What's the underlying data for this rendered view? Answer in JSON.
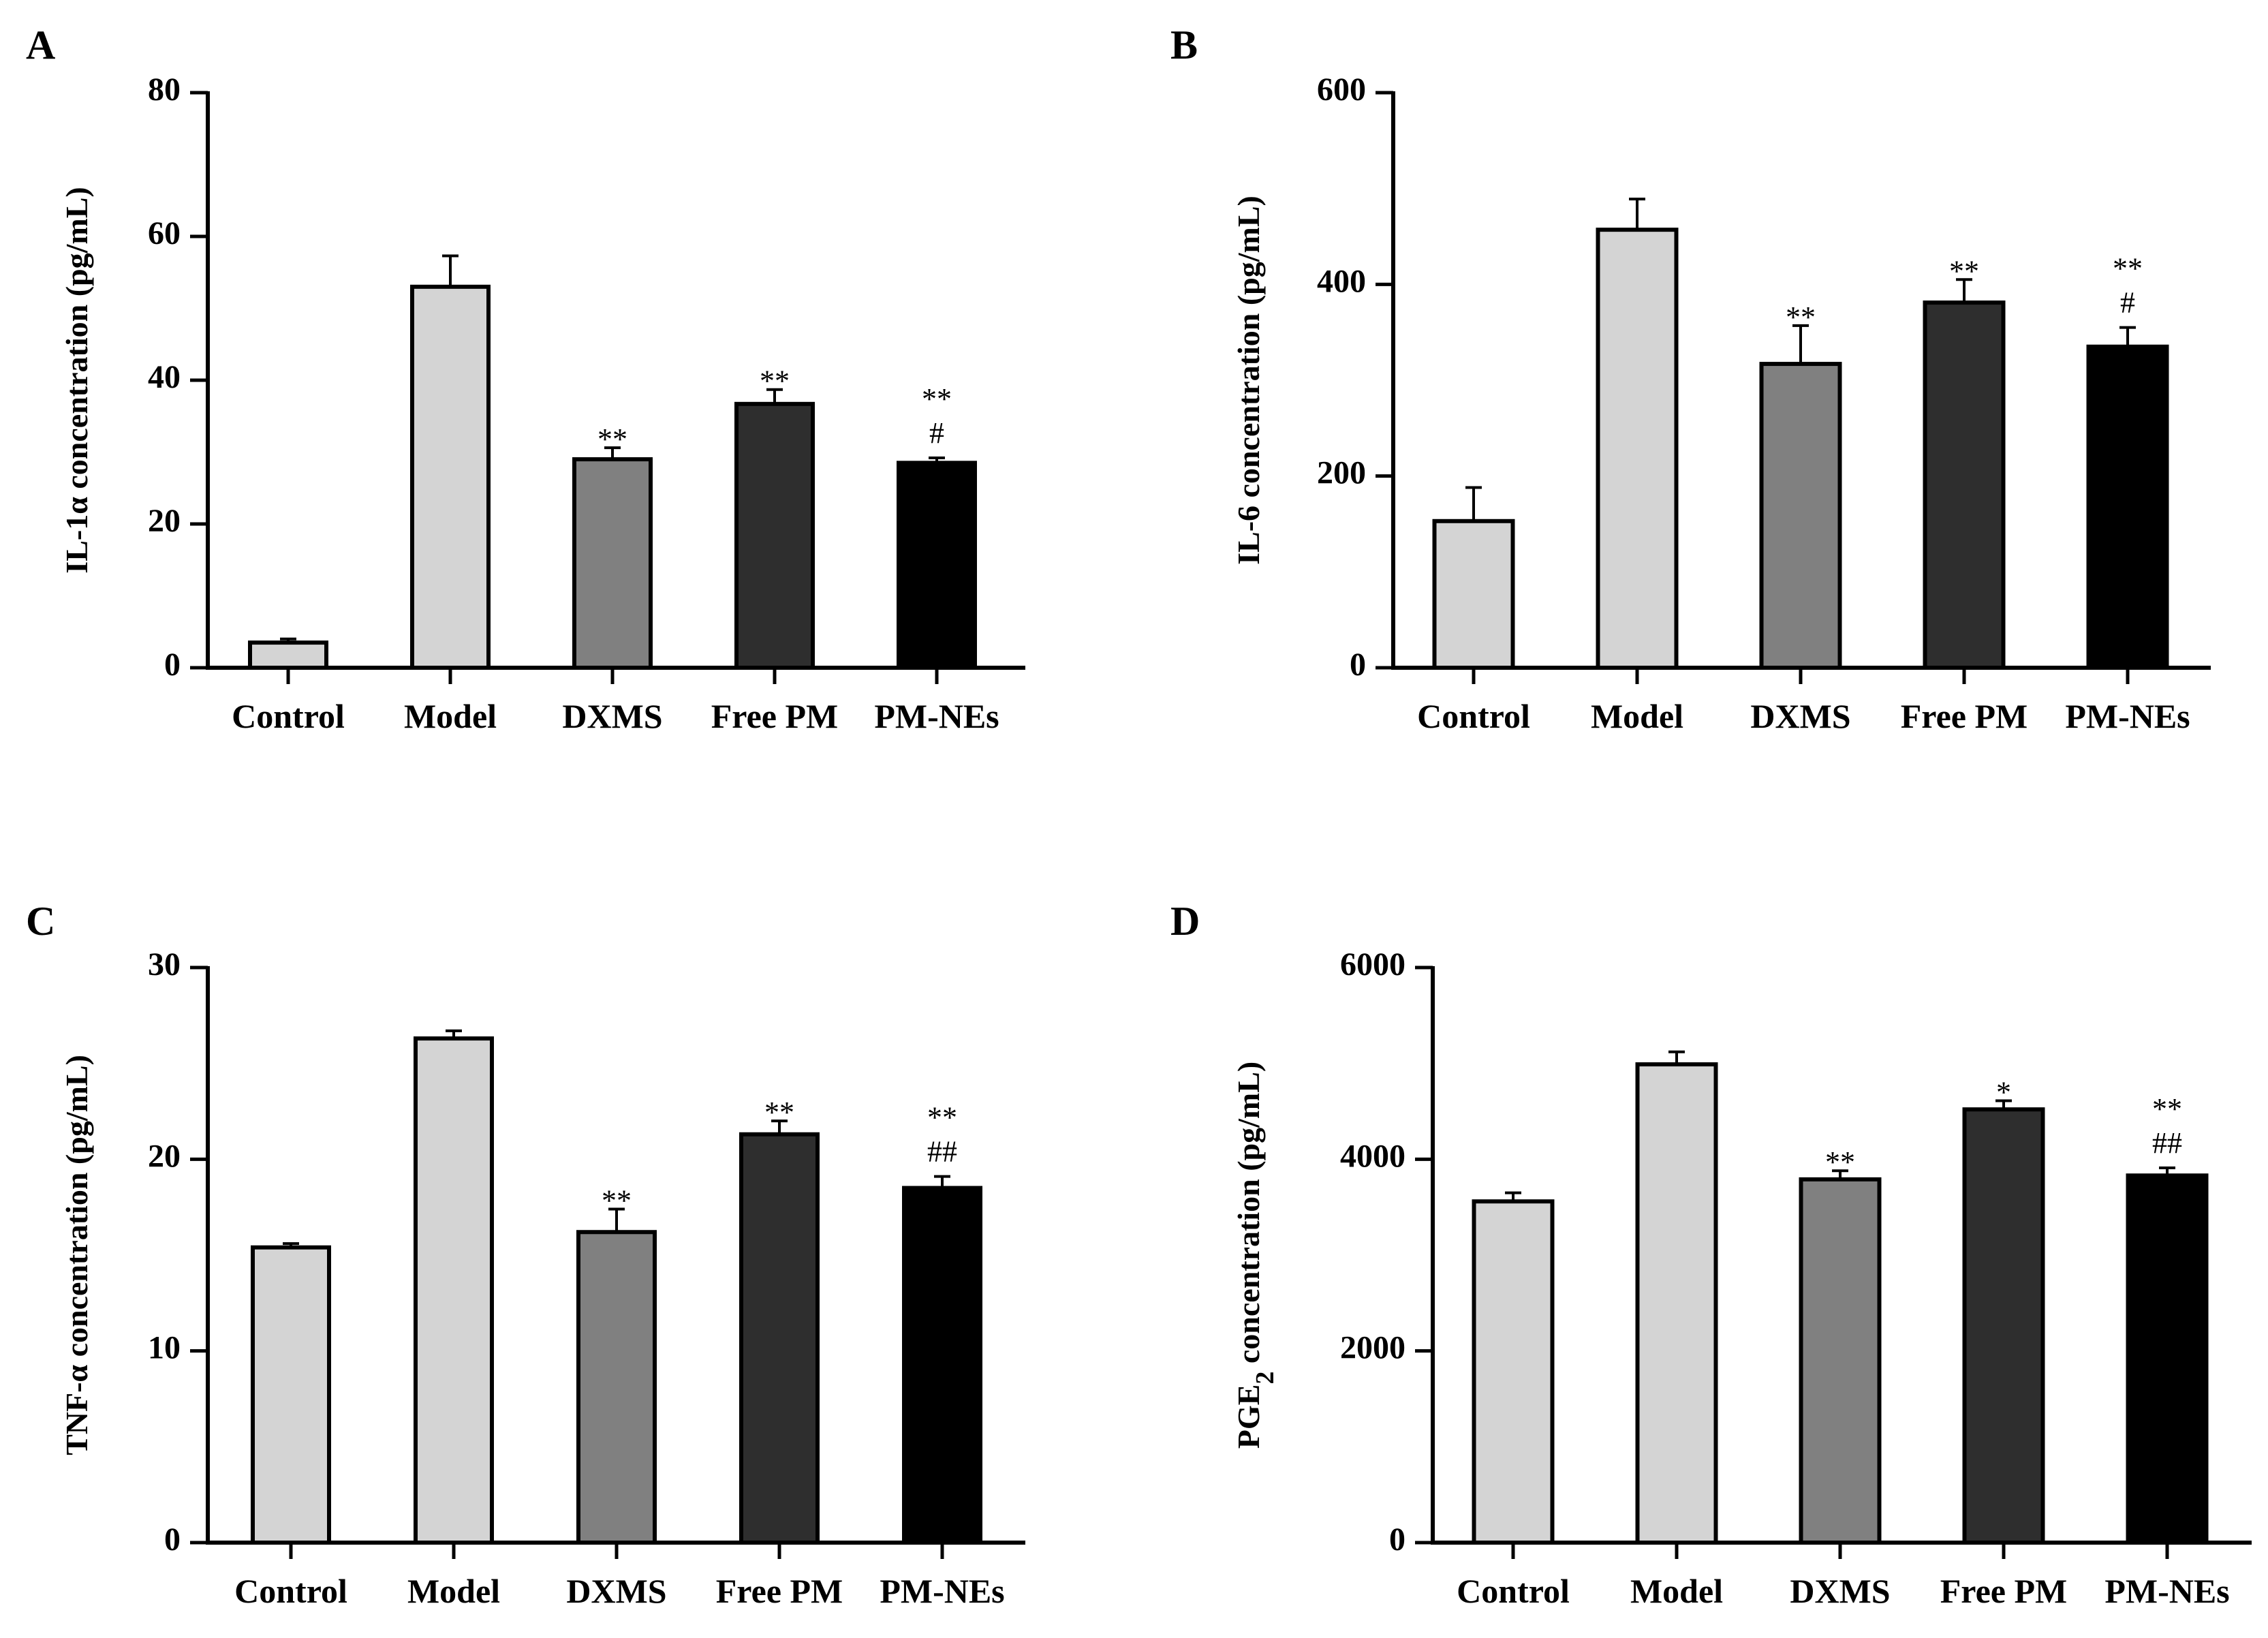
{
  "chart_data": [
    {
      "type": "bar",
      "panel_label": "A",
      "categories": [
        "Control",
        "Model",
        "DXMS",
        "Free PM",
        "PM-NEs"
      ],
      "values": [
        3.5,
        53,
        29,
        36.7,
        28.5
      ],
      "errors": [
        0.5,
        4.3,
        1.6,
        2.0,
        0.7
      ],
      "significance": [
        "",
        "",
        "**",
        "**",
        "**"
      ],
      "significance2": [
        "",
        "",
        "",
        "",
        "#"
      ],
      "ylabel": "IL-1α concentration (pg/mL)",
      "ylim": [
        0,
        80
      ],
      "yticks": [
        0,
        20,
        40,
        60,
        80
      ],
      "colors": [
        "#d4d4d4",
        "#d4d4d4",
        "#808080",
        "#2e2e2e",
        "#000000"
      ]
    },
    {
      "type": "bar",
      "panel_label": "B",
      "categories": [
        "Control",
        "Model",
        "DXMS",
        "Free PM",
        "PM-NEs"
      ],
      "values": [
        153,
        457,
        317,
        381,
        335
      ],
      "errors": [
        35,
        32,
        40,
        24,
        20
      ],
      "significance": [
        "",
        "",
        "**",
        "**",
        "**"
      ],
      "significance2": [
        "",
        "",
        "",
        "",
        "#"
      ],
      "ylabel": "IL-6 concentration (pg/mL)",
      "ylim": [
        0,
        600
      ],
      "yticks": [
        0,
        200,
        400,
        600
      ],
      "colors": [
        "#d4d4d4",
        "#d4d4d4",
        "#808080",
        "#2e2e2e",
        "#000000"
      ]
    },
    {
      "type": "bar",
      "panel_label": "C",
      "categories": [
        "Control",
        "Model",
        "DXMS",
        "Free PM",
        "PM-NEs"
      ],
      "values": [
        15.4,
        26.3,
        16.2,
        21.3,
        18.5
      ],
      "errors": [
        0.2,
        0.4,
        1.2,
        0.7,
        0.6
      ],
      "significance": [
        "",
        "",
        "**",
        "**",
        "**"
      ],
      "significance2": [
        "",
        "",
        "",
        "",
        "##"
      ],
      "ylabel": "TNF-α concentration (pg/mL)",
      "ylim": [
        0,
        30
      ],
      "yticks": [
        0,
        10,
        20,
        30
      ],
      "colors": [
        "#d4d4d4",
        "#d4d4d4",
        "#808080",
        "#2e2e2e",
        "#000000"
      ]
    },
    {
      "type": "bar",
      "panel_label": "D",
      "categories": [
        "Control",
        "Model",
        "DXMS",
        "Free PM",
        "PM-NEs"
      ],
      "values": [
        3560,
        4990,
        3790,
        4520,
        3830
      ],
      "errors": [
        90,
        130,
        90,
        90,
        80
      ],
      "significance": [
        "",
        "",
        "**",
        "*",
        "**"
      ],
      "significance2": [
        "",
        "",
        "",
        "",
        "##"
      ],
      "ylabel": "PGE",
      "ylabel_sub": "2",
      "ylabel_rest": " concentration (pg/mL)",
      "ylim": [
        0,
        6000
      ],
      "yticks": [
        0,
        2000,
        4000,
        6000
      ],
      "colors": [
        "#d4d4d4",
        "#d4d4d4",
        "#808080",
        "#2e2e2e",
        "#000000"
      ]
    }
  ]
}
